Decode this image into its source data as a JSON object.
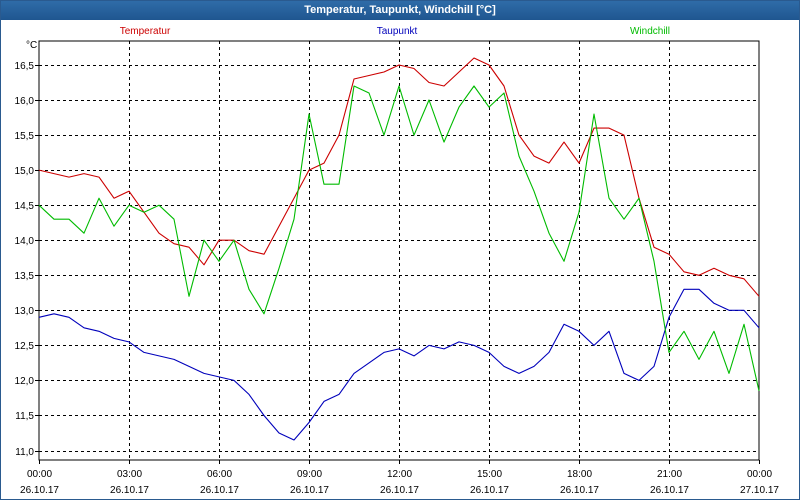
{
  "window": {
    "title": "Temperatur, Taupunkt, Windchill [°C]"
  },
  "chart_data": {
    "type": "line",
    "title": "Temperatur, Taupunkt, Windchill [°C]",
    "ylabel": "°C",
    "ylim": [
      10.9,
      16.8
    ],
    "xlim": [
      0,
      24
    ],
    "grid": true,
    "y_ticks": [
      "11,0",
      "11,5",
      "12,0",
      "12,5",
      "13,0",
      "13,5",
      "14,0",
      "14,5",
      "15,0",
      "15,5",
      "16,0",
      "16,5"
    ],
    "y_tick_values": [
      11.0,
      11.5,
      12.0,
      12.5,
      13.0,
      13.5,
      14.0,
      14.5,
      15.0,
      15.5,
      16.0,
      16.5
    ],
    "x_tick_hours": [
      0,
      3,
      6,
      9,
      12,
      15,
      18,
      21,
      24
    ],
    "x_tick_times": [
      "00:00",
      "03:00",
      "06:00",
      "09:00",
      "12:00",
      "15:00",
      "18:00",
      "21:00",
      "00:00"
    ],
    "x_tick_dates": [
      "26.10.17",
      "26.10.17",
      "26.10.17",
      "26.10.17",
      "26.10.17",
      "26.10.17",
      "26.10.17",
      "26.10.17",
      "27.10.17"
    ],
    "series": [
      {
        "name": "Temperatur",
        "color": "#cc0000",
        "x": [
          0,
          0.5,
          1,
          1.5,
          2,
          2.5,
          3,
          3.5,
          4,
          4.5,
          5,
          5.5,
          6,
          6.5,
          7,
          7.5,
          8,
          8.5,
          9,
          9.5,
          10,
          10.5,
          11,
          11.5,
          12,
          12.5,
          13,
          13.5,
          14,
          14.5,
          15,
          15.5,
          16,
          16.5,
          17,
          17.5,
          18,
          18.5,
          19,
          19.5,
          20,
          20.5,
          21,
          21.5,
          22,
          22.5,
          23,
          23.5,
          24
        ],
        "y": [
          15.0,
          14.95,
          14.9,
          14.95,
          14.9,
          14.6,
          14.7,
          14.4,
          14.1,
          13.95,
          13.9,
          13.65,
          14.0,
          14.0,
          13.85,
          13.8,
          14.2,
          14.6,
          15.0,
          15.1,
          15.5,
          16.3,
          16.35,
          16.4,
          16.5,
          16.45,
          16.25,
          16.2,
          16.4,
          16.6,
          16.5,
          16.2,
          15.5,
          15.2,
          15.1,
          15.4,
          15.1,
          15.6,
          15.6,
          15.5,
          14.6,
          13.9,
          13.8,
          13.55,
          13.5,
          13.6,
          13.5,
          13.45,
          13.2
        ]
      },
      {
        "name": "Taupunkt",
        "color": "#0000bb",
        "x": [
          0,
          0.5,
          1,
          1.5,
          2,
          2.5,
          3,
          3.5,
          4,
          4.5,
          5,
          5.5,
          6,
          6.5,
          7,
          7.5,
          8,
          8.5,
          9,
          9.5,
          10,
          10.5,
          11,
          11.5,
          12,
          12.5,
          13,
          13.5,
          14,
          14.5,
          15,
          15.5,
          16,
          16.5,
          17,
          17.5,
          18,
          18.5,
          19,
          19.5,
          20,
          20.5,
          21,
          21.5,
          22,
          22.5,
          23,
          23.5,
          24
        ],
        "y": [
          12.9,
          12.95,
          12.9,
          12.75,
          12.7,
          12.6,
          12.55,
          12.4,
          12.35,
          12.3,
          12.2,
          12.1,
          12.05,
          12.0,
          11.8,
          11.5,
          11.25,
          11.15,
          11.4,
          11.7,
          11.8,
          12.1,
          12.25,
          12.4,
          12.45,
          12.35,
          12.5,
          12.45,
          12.55,
          12.5,
          12.4,
          12.2,
          12.1,
          12.2,
          12.4,
          12.8,
          12.7,
          12.5,
          12.7,
          12.1,
          12.0,
          12.2,
          12.9,
          13.3,
          13.3,
          13.1,
          13.0,
          13.0,
          12.75
        ]
      },
      {
        "name": "Windchill",
        "color": "#00bb00",
        "x": [
          0,
          0.5,
          1,
          1.5,
          2,
          2.5,
          3,
          3.5,
          4,
          4.5,
          5,
          5.5,
          6,
          6.5,
          7,
          7.5,
          8,
          8.5,
          9,
          9.5,
          10,
          10.5,
          11,
          11.5,
          12,
          12.5,
          13,
          13.5,
          14,
          14.5,
          15,
          15.5,
          16,
          16.5,
          17,
          17.5,
          18,
          18.5,
          19,
          19.5,
          20,
          20.5,
          21,
          21.5,
          22,
          22.5,
          23,
          23.5,
          24
        ],
        "y": [
          14.5,
          14.3,
          14.3,
          14.1,
          14.6,
          14.2,
          14.5,
          14.4,
          14.5,
          14.3,
          13.2,
          14.0,
          13.7,
          14.0,
          13.3,
          12.95,
          13.6,
          14.3,
          15.8,
          14.8,
          14.8,
          16.2,
          16.1,
          15.5,
          16.2,
          15.5,
          16.0,
          15.4,
          15.9,
          16.2,
          15.9,
          16.1,
          15.2,
          14.7,
          14.1,
          13.7,
          14.4,
          15.8,
          14.6,
          14.3,
          14.6,
          13.7,
          12.4,
          12.7,
          12.3,
          12.7,
          12.1,
          12.8,
          11.85
        ]
      }
    ]
  }
}
